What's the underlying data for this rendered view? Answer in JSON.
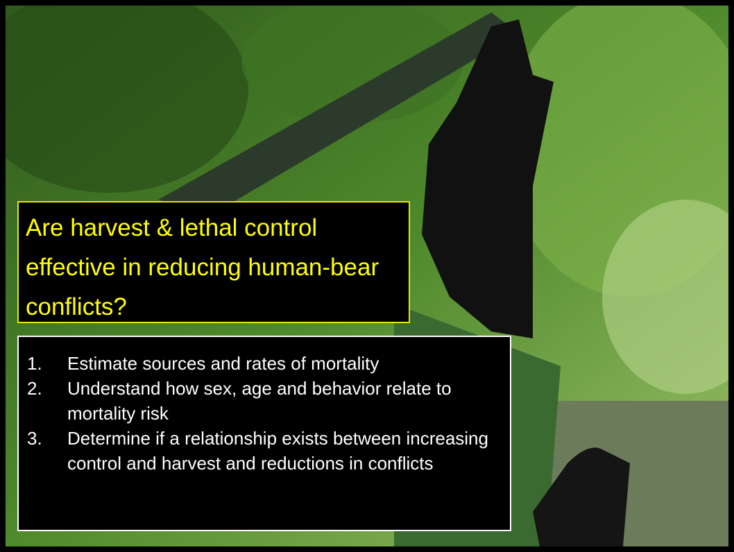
{
  "title": "Are harvest & lethal control effective in reducing human-bear conflicts?",
  "items": [
    {
      "number": "1.",
      "text": "Estimate sources and rates of mortality"
    },
    {
      "number": "2.",
      "text": "Understand how sex, age and behavior relate to mortality risk"
    },
    {
      "number": "3.",
      "text": "Determine if a relationship exists between increasing control and harvest and reductions in conflicts"
    }
  ]
}
